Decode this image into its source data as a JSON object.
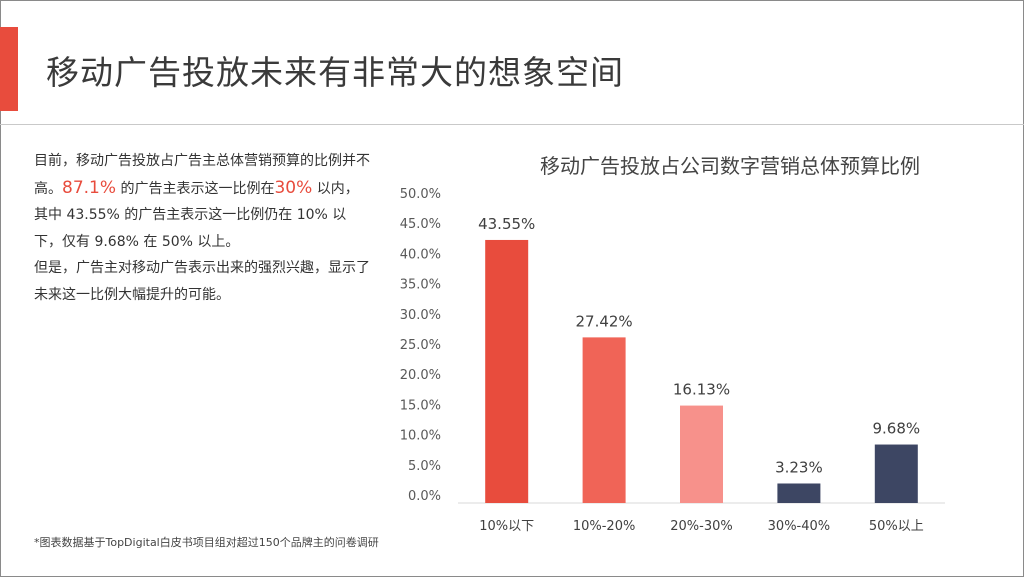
{
  "page": {
    "title": "移动广告投放未来有非常大的想象空间",
    "description": {
      "p1_a": "目前，移动广告投放占广告主总体营销预算的比例并不高。",
      "p1_hl1": "87.1%",
      "p1_b": " 的广告主表示这一比例在",
      "p1_hl2": "30%",
      "p1_c": " 以内，其中 43.55% 的广告主表示这一比例仍在 10% 以下，仅有 9.68% 在 50% 以上。",
      "p2": "但是，广告主对移动广告表示出来的强烈兴趣，显示了未来这一比例大幅提升的可能。"
    },
    "footnote": "*图表数据基于TopDigital白皮书项目组对超过150个品牌主的问卷调研"
  },
  "colors": {
    "accent": "#e84c3d",
    "text": "#333333"
  },
  "chart_data": {
    "type": "bar",
    "title": "移动广告投放占公司数字营销总体预算比例",
    "categories": [
      "10%以下",
      "10%-20%",
      "20%-30%",
      "30%-40%",
      "50%以上"
    ],
    "values": [
      43.55,
      27.42,
      16.13,
      3.23,
      9.68
    ],
    "value_labels": [
      "43.55%",
      "27.42%",
      "16.13%",
      "3.23%",
      "9.68%"
    ],
    "bar_colors": [
      "#e84c3d",
      "#f06457",
      "#f7918b",
      "#3d4663",
      "#3d4663"
    ],
    "yticks": [
      "0.0%",
      "5.0%",
      "10.0%",
      "15.0%",
      "20.0%",
      "25.0%",
      "30.0%",
      "35.0%",
      "40.0%",
      "45.0%",
      "50.0%"
    ],
    "ylim": [
      0,
      50
    ],
    "xlabel": "",
    "ylabel": "",
    "grid": false,
    "legend": "none"
  }
}
